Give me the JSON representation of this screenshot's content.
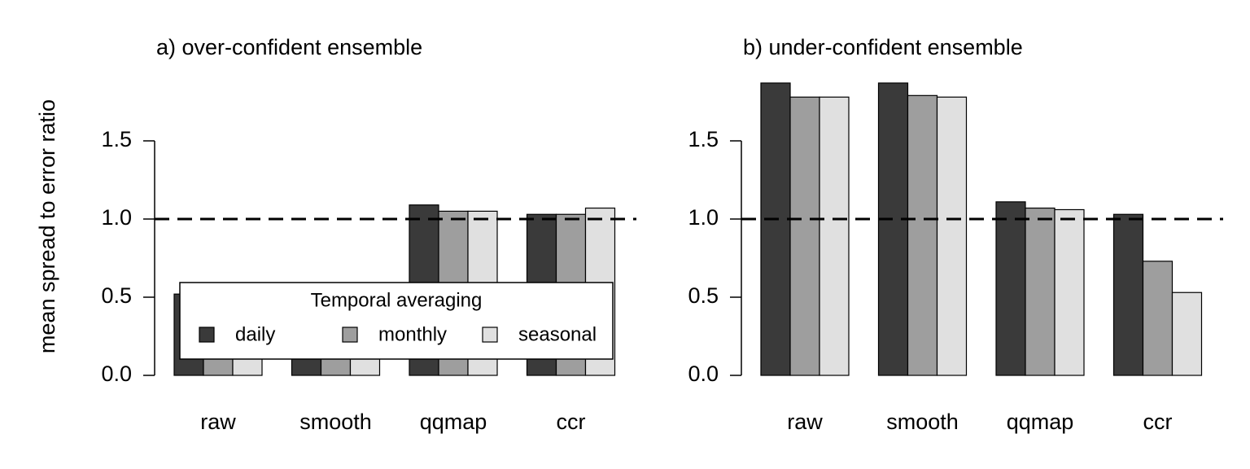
{
  "chart_data": [
    {
      "type": "bar",
      "title": "a) over-confident ensemble",
      "ylabel": "mean spread to error ratio",
      "categories": [
        "raw",
        "smooth",
        "qqmap",
        "ccr"
      ],
      "series": [
        {
          "name": "daily",
          "color": "#3a3a3a",
          "values": [
            0.52,
            0.45,
            1.09,
            1.03
          ]
        },
        {
          "name": "monthly",
          "color": "#9e9e9e",
          "values": [
            0.48,
            0.44,
            1.05,
            1.03
          ]
        },
        {
          "name": "seasonal",
          "color": "#e0e0e0",
          "values": [
            0.47,
            0.44,
            1.05,
            1.07
          ]
        }
      ],
      "ylim": [
        0,
        1.9
      ],
      "yticks": [
        {
          "value": 0,
          "label": "0.0"
        },
        0.5,
        {
          "value": 1,
          "label": "1.0"
        },
        1.5
      ],
      "hline": 1,
      "legend": "bottom",
      "legend_title": "Temporal averaging"
    },
    {
      "type": "bar",
      "title": "b) under-confident ensemble",
      "categories": [
        "raw",
        "smooth",
        "qqmap",
        "ccr"
      ],
      "series": [
        {
          "color": "#3a3a3a",
          "values": [
            1.87,
            1.87,
            1.11,
            1.03
          ]
        },
        {
          "color": "#9e9e9e",
          "values": [
            1.78,
            1.79,
            1.07,
            0.73
          ]
        },
        {
          "color": "#e0e0e0",
          "values": [
            1.78,
            1.78,
            1.06,
            0.53
          ]
        }
      ],
      "ylim": [
        0,
        1.9
      ],
      "yticks": [
        {
          "value": 0,
          "label": "0.0"
        },
        0.5,
        {
          "value": 1,
          "label": "1.0"
        },
        1.5
      ],
      "hline": 1
    }
  ]
}
